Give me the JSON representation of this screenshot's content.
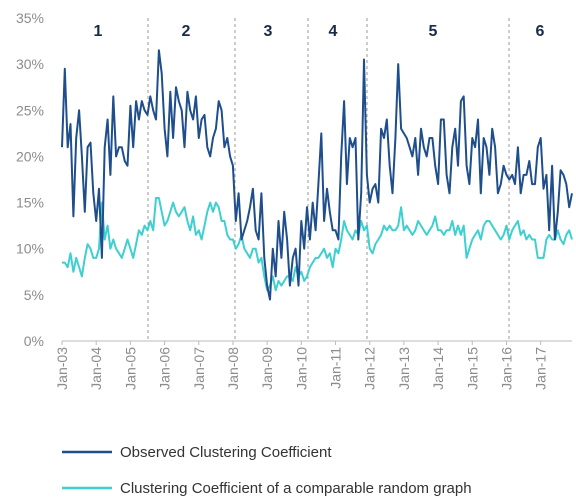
{
  "chart_data": {
    "type": "line",
    "periods": [
      "1",
      "2",
      "3",
      "4",
      "5",
      "6"
    ],
    "categories": [
      "Jan-03",
      null,
      null,
      null,
      null,
      null,
      null,
      null,
      null,
      null,
      null,
      null,
      "Jan-04",
      null,
      null,
      null,
      null,
      null,
      null,
      null,
      null,
      null,
      null,
      null,
      "Jan-05",
      null,
      null,
      null,
      null,
      null,
      null,
      null,
      null,
      null,
      null,
      null,
      "Jan-06",
      null,
      null,
      null,
      null,
      null,
      null,
      null,
      null,
      null,
      null,
      null,
      "Jan-07",
      null,
      null,
      null,
      null,
      null,
      null,
      null,
      null,
      null,
      null,
      null,
      "Jan-08",
      null,
      null,
      null,
      null,
      null,
      null,
      null,
      null,
      null,
      null,
      null,
      "Jan-09",
      null,
      null,
      null,
      null,
      null,
      null,
      null,
      null,
      null,
      null,
      null,
      "Jan-10",
      null,
      null,
      null,
      null,
      null,
      null,
      null,
      null,
      null,
      null,
      null,
      "Jan-11",
      null,
      null,
      null,
      null,
      null,
      null,
      null,
      null,
      null,
      null,
      null,
      "Jan-12",
      null,
      null,
      null,
      null,
      null,
      null,
      null,
      null,
      null,
      null,
      null,
      "Jan-13",
      null,
      null,
      null,
      null,
      null,
      null,
      null,
      null,
      null,
      null,
      null,
      "Jan-14",
      null,
      null,
      null,
      null,
      null,
      null,
      null,
      null,
      null,
      null,
      null,
      "Jan-15",
      null,
      null,
      null,
      null,
      null,
      null,
      null,
      null,
      null,
      null,
      null,
      "Jan-16",
      null,
      null,
      null,
      null,
      null,
      null,
      null,
      null,
      null,
      null,
      null,
      "Jan-17",
      null,
      null,
      null,
      null,
      null,
      null,
      null,
      null,
      null,
      null,
      null
    ],
    "series": [
      {
        "name": "Observed Clustering Coefficient",
        "color": "#1f4e8c",
        "values": [
          21,
          29.5,
          21,
          23.5,
          13.5,
          22,
          25,
          20,
          14,
          21,
          21.5,
          16,
          13,
          16.5,
          9,
          21,
          24,
          18,
          26.5,
          20,
          21,
          21,
          19.5,
          19,
          25.5,
          21,
          26,
          24,
          26,
          25,
          24.5,
          26.5,
          25,
          24,
          31.5,
          29,
          23,
          20,
          27,
          22,
          27.5,
          26,
          25,
          21,
          27,
          25,
          24,
          26.5,
          22,
          24,
          24.5,
          21,
          20,
          22,
          23,
          26,
          25,
          21,
          22,
          20,
          19,
          13,
          16,
          11,
          12,
          13,
          14.5,
          16.5,
          12,
          11,
          16,
          9,
          6,
          4.5,
          10,
          7,
          13,
          9,
          14,
          11,
          6,
          9,
          10,
          6,
          13,
          10,
          14.5,
          11,
          15,
          12,
          17,
          22.5,
          13,
          16.5,
          14,
          12,
          12,
          11,
          20,
          26,
          17,
          22,
          21,
          22,
          11,
          16,
          30.5,
          18,
          15,
          16.5,
          17,
          15,
          23,
          22,
          24,
          19,
          16,
          22,
          30,
          23,
          22.5,
          22,
          21,
          20,
          22,
          18,
          23,
          21,
          20,
          22,
          22,
          19,
          17,
          24,
          24,
          18,
          16,
          21,
          23,
          19,
          26,
          26.5,
          19,
          17,
          22,
          21,
          24,
          16,
          22,
          21,
          18,
          23,
          21,
          16,
          17,
          19,
          18,
          17.5,
          18,
          17,
          21,
          16,
          18,
          18,
          19.5,
          17,
          17,
          21,
          22,
          16.5,
          18,
          12,
          19,
          11,
          14,
          18.5,
          18,
          17,
          14.5,
          16
        ]
      },
      {
        "name": "Clustering Coefficient of a comparable random graph",
        "color": "#3ecfd0",
        "values": [
          8.5,
          8.5,
          8,
          9.5,
          7.5,
          9,
          8,
          7,
          9,
          10.5,
          10,
          9,
          9,
          10,
          15,
          11,
          12.5,
          10,
          11,
          10,
          9.5,
          9,
          10,
          11,
          10,
          9,
          10.5,
          12,
          11.5,
          12.5,
          12,
          13,
          12,
          15.5,
          15.5,
          14,
          12.5,
          13,
          14,
          15,
          14,
          13.5,
          14,
          14.5,
          13,
          12,
          13.5,
          11.5,
          12,
          11,
          12.5,
          14,
          15,
          14,
          15,
          14.5,
          13,
          13,
          11.5,
          11,
          11,
          10,
          10.5,
          11.5,
          10,
          9.5,
          9,
          10,
          10,
          8.5,
          9,
          7,
          5.5,
          6,
          7,
          5.5,
          6.5,
          6,
          6.5,
          7,
          7,
          6.5,
          8,
          7,
          7.5,
          6.5,
          7,
          8,
          8.5,
          9,
          9,
          9.5,
          10,
          9,
          9.5,
          8,
          10,
          9.5,
          11,
          13,
          12,
          11.5,
          11,
          12,
          11.5,
          13,
          12,
          12.5,
          10,
          9.5,
          10.5,
          11,
          11.5,
          12.5,
          12,
          12.5,
          12,
          12,
          12.5,
          14.5,
          12,
          12.5,
          12,
          11.5,
          12,
          13,
          12.5,
          12,
          11.5,
          12,
          12.5,
          13.5,
          12,
          12,
          11.5,
          12,
          12,
          13,
          11.5,
          12.5,
          11.5,
          12.5,
          9,
          10,
          11,
          11.5,
          12,
          11,
          12.5,
          13,
          13,
          12.5,
          12,
          11.5,
          11,
          11.5,
          12.5,
          11,
          12,
          12.5,
          13,
          11.5,
          12,
          11,
          11.5,
          11,
          11,
          9,
          9,
          9,
          11,
          11.5,
          11,
          11,
          12,
          11,
          10.5,
          11.5,
          12,
          11
        ]
      }
    ],
    "ylim": [
      0,
      35
    ],
    "yticks": [
      {
        "value": 0,
        "label": "0%"
      },
      {
        "value": 5,
        "label": "5%"
      },
      {
        "value": 10,
        "label": "10%"
      },
      {
        "value": 15,
        "label": "15%"
      },
      {
        "value": 20,
        "label": "20%"
      },
      {
        "value": 25,
        "label": "25%"
      },
      {
        "value": 30,
        "label": "30%"
      },
      {
        "value": 35,
        "label": "35%"
      }
    ],
    "grid": false
  }
}
